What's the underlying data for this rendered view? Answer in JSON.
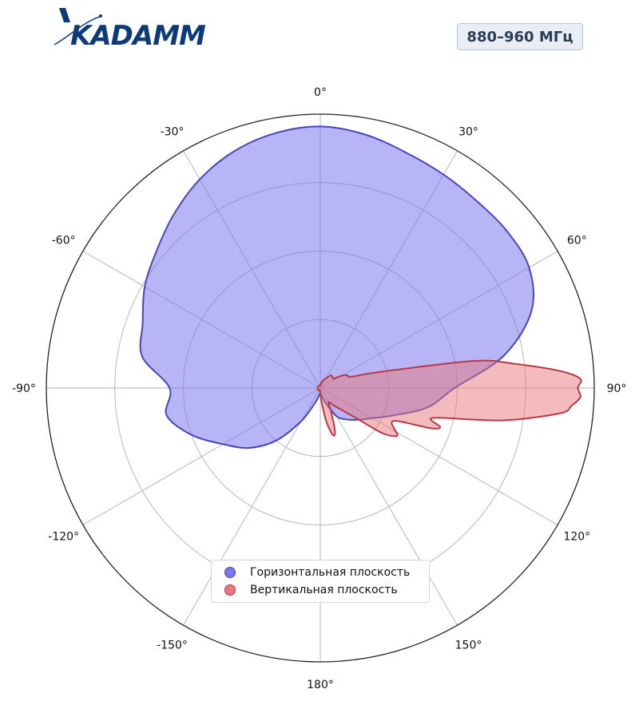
{
  "logo": {
    "text": "KADAMM",
    "color": "#0d3b7a"
  },
  "band_label": "880–960 МГц",
  "chart_data": {
    "type": "polar-area",
    "angle_unit": "degrees",
    "theta_zero": "top",
    "theta_direction": "clockwise",
    "theta_tick_labels": [
      "0°",
      "30°",
      "60°",
      "90°",
      "120°",
      "150°",
      "180°",
      "-150°",
      "-120°",
      "-90°",
      "-60°",
      "-30°"
    ],
    "theta_ticks": [
      0,
      30,
      60,
      90,
      120,
      150,
      180,
      -150,
      -120,
      -90,
      -60,
      -30
    ],
    "r_gridlines": [
      0.25,
      0.5,
      0.75,
      1.0
    ],
    "r_tick_labels_shown": false,
    "rlim": [
      0,
      1
    ],
    "legend_position": "bottom-center",
    "series": [
      {
        "name": "Горизонтальная плоскость",
        "color": "#7b78ec",
        "edge_color": "#4a45b8",
        "theta": [
          0,
          10,
          20,
          30,
          40,
          50,
          60,
          70,
          80,
          90,
          100,
          110,
          120,
          130,
          140,
          150,
          160,
          170,
          180,
          -170,
          -160,
          -150,
          -140,
          -130,
          -120,
          -110,
          -100,
          -90,
          -80,
          -70,
          -60,
          -50,
          -40,
          -30,
          -20,
          -10
        ],
        "r": [
          0.955,
          0.94,
          0.915,
          0.9,
          0.89,
          0.89,
          0.88,
          0.82,
          0.68,
          0.49,
          0.4,
          0.29,
          0.22,
          0.18,
          0.15,
          0.12,
          0.06,
          0.03,
          0.02,
          0.03,
          0.06,
          0.14,
          0.25,
          0.34,
          0.41,
          0.5,
          0.57,
          0.55,
          0.66,
          0.69,
          0.74,
          0.78,
          0.83,
          0.88,
          0.92,
          0.945
        ]
      },
      {
        "name": "Вертикальная плоскость",
        "color": "#e8787e",
        "edge_color": "#b83a44",
        "theta": [
          0,
          5,
          10,
          15,
          20,
          30,
          40,
          50,
          55,
          60,
          65,
          70,
          75,
          80,
          83,
          86,
          88,
          90,
          92,
          94,
          96,
          100,
          104,
          106,
          108,
          110,
          113,
          116,
          119,
          122,
          126,
          130,
          140,
          150,
          155,
          160,
          163,
          166,
          170,
          175,
          180,
          185,
          190,
          200,
          210,
          220,
          230,
          240,
          250,
          260,
          270,
          280,
          290,
          300,
          310,
          320,
          330,
          340,
          350
        ],
        "r": [
          0.01,
          0.01,
          0.02,
          0.02,
          0.03,
          0.04,
          0.06,
          0.06,
          0.06,
          0.09,
          0.11,
          0.12,
          0.23,
          0.57,
          0.72,
          0.88,
          0.95,
          0.94,
          0.95,
          0.92,
          0.88,
          0.68,
          0.45,
          0.42,
          0.46,
          0.43,
          0.31,
          0.29,
          0.31,
          0.33,
          0.28,
          0.17,
          0.09,
          0.06,
          0.09,
          0.15,
          0.18,
          0.17,
          0.12,
          0.05,
          0.02,
          0.01,
          0.01,
          0.01,
          0.01,
          0.01,
          0.01,
          0.01,
          0.01,
          0.01,
          0.01,
          0.01,
          0.01,
          0.01,
          0.01,
          0.01,
          0.01,
          0.01,
          0.01
        ]
      }
    ]
  }
}
